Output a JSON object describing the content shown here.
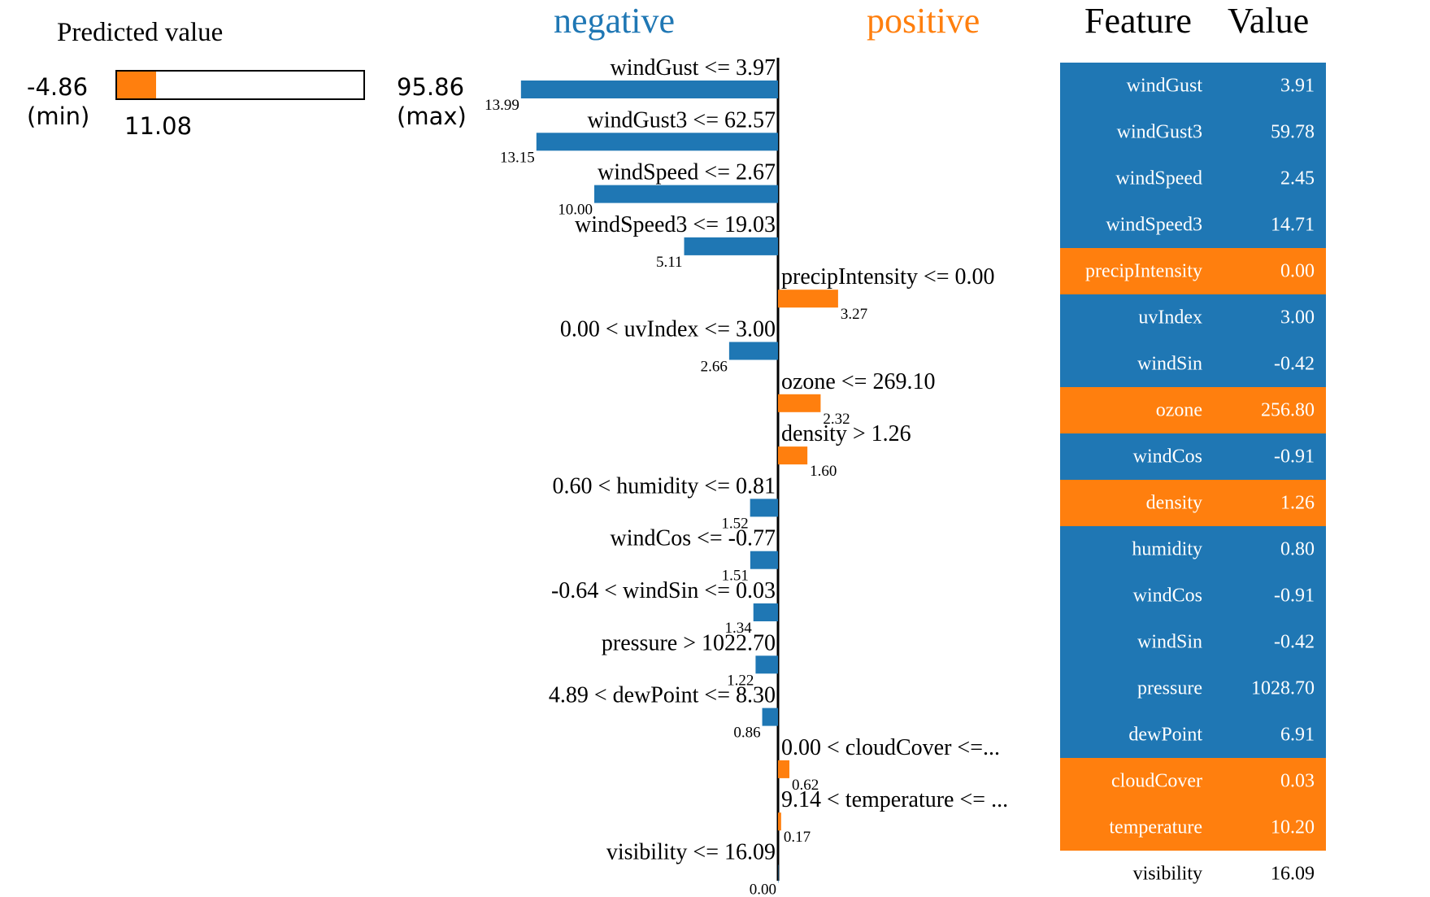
{
  "colors": {
    "negative": "#1f77b4",
    "positive": "#ff7f0e"
  },
  "predicted": {
    "title": "Predicted value",
    "min_value": "-4.86",
    "min_label": "(min)",
    "max_value": "95.86",
    "max_label": "(max)",
    "value_label": "11.08",
    "min": -4.86,
    "max": 95.86,
    "value": 11.08
  },
  "chart_data": {
    "type": "bar",
    "orientation": "horizontal",
    "headers": {
      "negative": "negative",
      "positive": "positive"
    },
    "bars": [
      {
        "label": "windGust <= 3.97",
        "value": 13.99,
        "value_label": "13.99",
        "side": "negative"
      },
      {
        "label": "windGust3 <= 62.57",
        "value": 13.15,
        "value_label": "13.15",
        "side": "negative"
      },
      {
        "label": "windSpeed <= 2.67",
        "value": 10.0,
        "value_label": "10.00",
        "side": "negative"
      },
      {
        "label": "windSpeed3 <= 19.03",
        "value": 5.11,
        "value_label": "5.11",
        "side": "negative"
      },
      {
        "label": "precipIntensity <= 0.00",
        "value": 3.27,
        "value_label": "3.27",
        "side": "positive"
      },
      {
        "label": "0.00 < uvIndex <= 3.00",
        "value": 2.66,
        "value_label": "2.66",
        "side": "negative"
      },
      {
        "label": "ozone <= 269.10",
        "value": 2.32,
        "value_label": "2.32",
        "side": "positive"
      },
      {
        "label": "density > 1.26",
        "value": 1.6,
        "value_label": "1.60",
        "side": "positive"
      },
      {
        "label": "0.60 < humidity <= 0.81",
        "value": 1.52,
        "value_label": "1.52",
        "side": "negative"
      },
      {
        "label": "windCos <= -0.77",
        "value": 1.51,
        "value_label": "1.51",
        "side": "negative"
      },
      {
        "label": "-0.64 < windSin <= 0.03",
        "value": 1.34,
        "value_label": "1.34",
        "side": "negative"
      },
      {
        "label": "pressure > 1022.70",
        "value": 1.22,
        "value_label": "1.22",
        "side": "negative"
      },
      {
        "label": "4.89 < dewPoint <= 8.30",
        "value": 0.86,
        "value_label": "0.86",
        "side": "negative"
      },
      {
        "label": "0.00 < cloudCover <=...",
        "value": 0.62,
        "value_label": "0.62",
        "side": "positive"
      },
      {
        "label": "9.14 < temperature <= ...",
        "value": 0.17,
        "value_label": "0.17",
        "side": "positive"
      },
      {
        "label": "visibility <= 16.09",
        "value": 0.0,
        "value_label": "0.00",
        "side": "negative"
      }
    ]
  },
  "table": {
    "headers": {
      "feature": "Feature",
      "value": "Value"
    },
    "rows": [
      {
        "feature": "windGust",
        "value": "3.91",
        "side": "negative"
      },
      {
        "feature": "windGust3",
        "value": "59.78",
        "side": "negative"
      },
      {
        "feature": "windSpeed",
        "value": "2.45",
        "side": "negative"
      },
      {
        "feature": "windSpeed3",
        "value": "14.71",
        "side": "negative"
      },
      {
        "feature": "precipIntensity",
        "value": "0.00",
        "side": "positive"
      },
      {
        "feature": "uvIndex",
        "value": "3.00",
        "side": "negative"
      },
      {
        "feature": "windSin",
        "value": "-0.42",
        "side": "negative"
      },
      {
        "feature": "ozone",
        "value": "256.80",
        "side": "positive"
      },
      {
        "feature": "windCos",
        "value": "-0.91",
        "side": "negative"
      },
      {
        "feature": "density",
        "value": "1.26",
        "side": "positive"
      },
      {
        "feature": "humidity",
        "value": "0.80",
        "side": "negative"
      },
      {
        "feature": "windCos",
        "value": "-0.91",
        "side": "negative"
      },
      {
        "feature": "windSin",
        "value": "-0.42",
        "side": "negative"
      },
      {
        "feature": "pressure",
        "value": "1028.70",
        "side": "negative"
      },
      {
        "feature": "dewPoint",
        "value": "6.91",
        "side": "negative"
      },
      {
        "feature": "cloudCover",
        "value": "0.03",
        "side": "positive"
      },
      {
        "feature": "temperature",
        "value": "10.20",
        "side": "positive"
      },
      {
        "feature": "visibility",
        "value": "16.09",
        "side": "none"
      }
    ]
  }
}
